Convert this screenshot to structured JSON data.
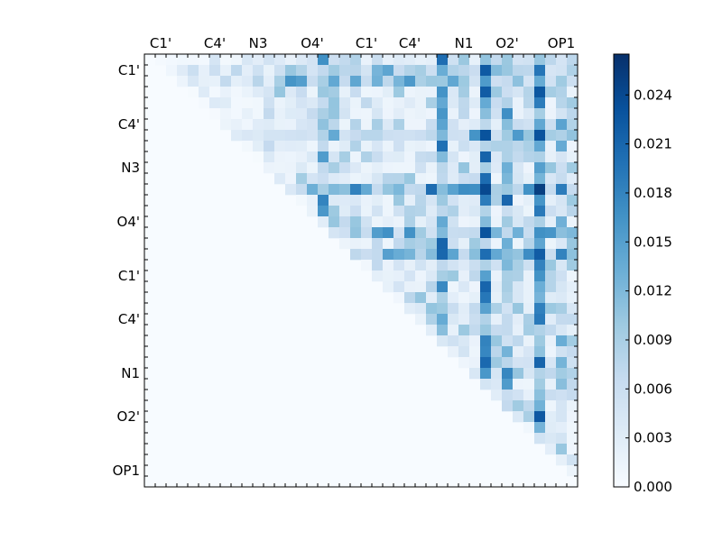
{
  "chart_data": {
    "type": "heatmap",
    "title": "",
    "xlabel": "",
    "ylabel": "",
    "matrix_size": 40,
    "x_tick_labels": [
      "C1'",
      "C4'",
      "N3",
      "O4'",
      "C1'",
      "C4'",
      "N1",
      "O2'",
      "OP1"
    ],
    "y_tick_labels": [
      "C1'",
      "C4'",
      "N3",
      "O4'",
      "C1'",
      "C4'",
      "N1",
      "O2'",
      "OP1"
    ],
    "label_tick_indices": [
      1,
      6,
      10,
      15,
      20,
      24,
      29,
      33,
      38
    ],
    "triangle": "upper",
    "colormap": "Blues",
    "colormap_stops": [
      "#f7fbff",
      "#deebf7",
      "#c6dbef",
      "#9ecae1",
      "#6baed6",
      "#4292c6",
      "#2171b5",
      "#08519c",
      "#08306b"
    ],
    "color_range": [
      0.0,
      0.0265
    ],
    "colorbar": {
      "ticks": [
        0.0,
        0.003,
        0.006,
        0.009,
        0.012,
        0.015,
        0.018,
        0.021,
        0.024
      ],
      "tick_labels": [
        "0.000",
        "0.003",
        "0.006",
        "0.009",
        "0.012",
        "0.015",
        "0.018",
        "0.021",
        "0.024"
      ]
    },
    "dark_rows": [
      {
        "row": 1,
        "weight": 0.45
      },
      {
        "row": 2,
        "weight": 0.5
      },
      {
        "row": 7,
        "weight": 0.5
      },
      {
        "row": 12,
        "weight": 0.75
      },
      {
        "row": 16,
        "weight": 0.55
      },
      {
        "row": 18,
        "weight": 0.65
      },
      {
        "row": 29,
        "weight": 0.45
      }
    ],
    "dark_cols": [
      {
        "col": 11,
        "weight": 0.35
      },
      {
        "col": 16,
        "weight": 0.5
      },
      {
        "col": 27,
        "weight": 0.85
      },
      {
        "col": 31,
        "weight": 0.9
      },
      {
        "col": 33,
        "weight": 0.55
      },
      {
        "col": 36,
        "weight": 1.0
      },
      {
        "col": 38,
        "weight": 0.35
      }
    ],
    "hotspots": [
      {
        "row": 12,
        "col": 12,
        "value": 0.0265
      },
      {
        "row": 12,
        "col": 31,
        "value": 0.024
      },
      {
        "row": 12,
        "col": 36,
        "value": 0.025
      },
      {
        "row": 3,
        "col": 31,
        "value": 0.022
      },
      {
        "row": 7,
        "col": 31,
        "value": 0.023
      },
      {
        "row": 7,
        "col": 36,
        "value": 0.023
      },
      {
        "row": 16,
        "col": 31,
        "value": 0.023
      },
      {
        "row": 18,
        "col": 36,
        "value": 0.022
      },
      {
        "row": 13,
        "col": 33,
        "value": 0.021
      },
      {
        "row": 13,
        "col": 16,
        "value": 0.018
      },
      {
        "row": 8,
        "col": 27,
        "value": 0.02
      }
    ]
  }
}
